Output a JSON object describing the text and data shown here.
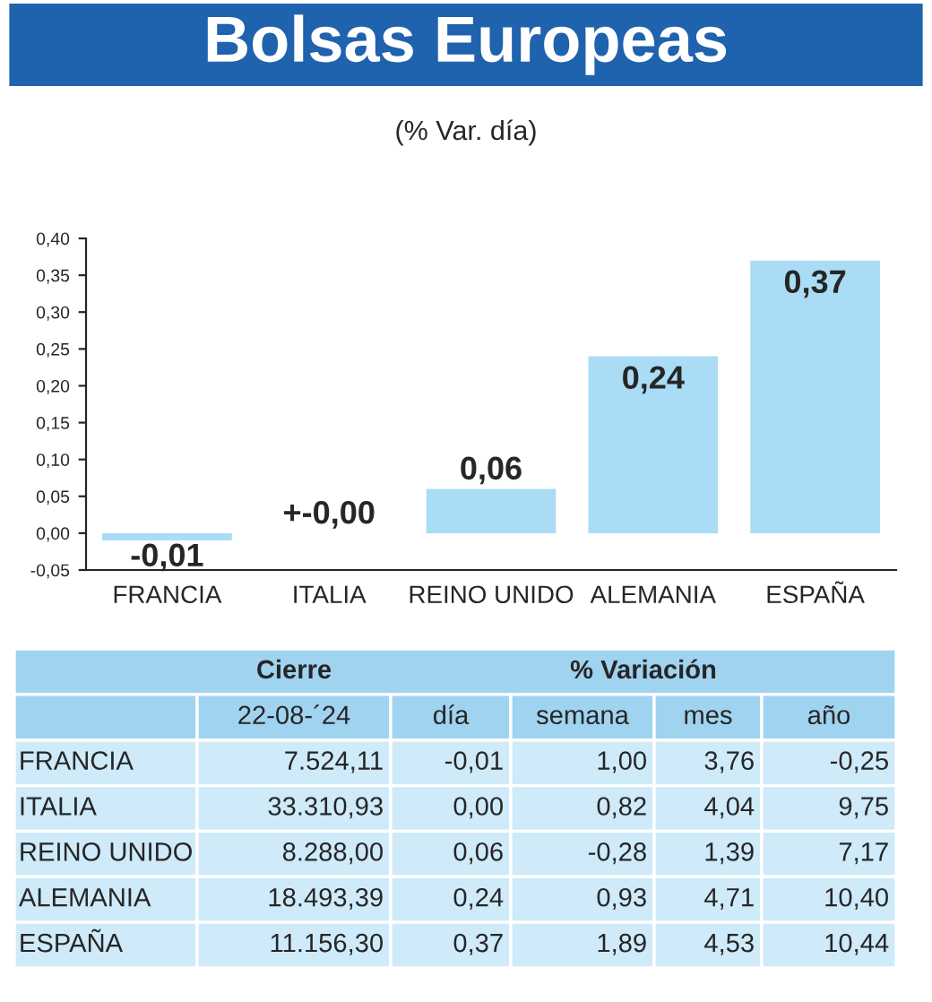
{
  "chart_data": [
    {
      "type": "bar",
      "title": "Bolsas Europeas",
      "subtitle": "(% Var. día)",
      "categories": [
        "FRANCIA",
        "ITALIA",
        "REINO UNIDO",
        "ALEMANIA",
        "ESPAÑA"
      ],
      "values": [
        -0.01,
        0.0,
        0.06,
        0.24,
        0.37
      ],
      "value_labels": [
        "-0,01",
        "+-0,00",
        "0,06",
        "0,24",
        "0,37"
      ],
      "color": "#aadcf5",
      "ylim": [
        -0.05,
        0.4
      ],
      "yticks": [
        {
          "value": -0.05,
          "label": "-0,05"
        },
        {
          "value": 0,
          "label": "0,00"
        },
        {
          "value": 0.05,
          "label": "0,05"
        },
        {
          "value": 0.1,
          "label": "0,10"
        },
        {
          "value": 0.15,
          "label": "0,15"
        },
        {
          "value": 0.2,
          "label": "0,20"
        },
        {
          "value": 0.25,
          "label": "0,25"
        },
        {
          "value": 0.3,
          "label": "0,30"
        },
        {
          "value": 0.35,
          "label": "0,35"
        },
        {
          "value": 0.4,
          "label": "0,40"
        }
      ]
    },
    {
      "type": "other",
      "annotations": [
        "Cierre",
        "% Variación",
        "22-08-´24",
        "día",
        "semana",
        "mes",
        "año",
        "FRANCIA",
        "7.524,11",
        "-0,01",
        "1,00",
        "3,76",
        "-0,25",
        "ITALIA",
        "33.310,93",
        "0,00",
        "0,82",
        "4,04",
        "9,75",
        "REINO UNIDO",
        "8.288,00",
        "0,06",
        "-0,28",
        "1,39",
        "7,17",
        "ALEMANIA",
        "18.493,39",
        "0,24",
        "0,93",
        "4,71",
        "10,40",
        "ESPAÑA",
        "11.156,30",
        "0,37",
        "1,89",
        "4,53",
        "10,44"
      ]
    }
  ]
}
